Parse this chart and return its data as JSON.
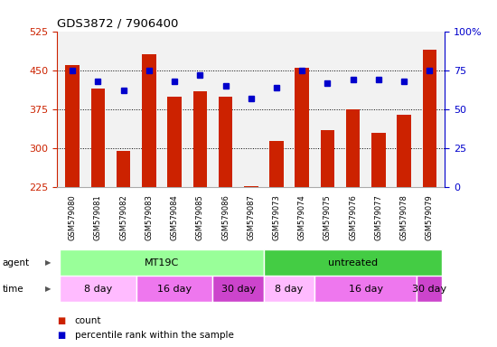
{
  "title": "GDS3872 / 7906400",
  "samples": [
    "GSM579080",
    "GSM579081",
    "GSM579082",
    "GSM579083",
    "GSM579084",
    "GSM579085",
    "GSM579086",
    "GSM579087",
    "GSM579073",
    "GSM579074",
    "GSM579075",
    "GSM579076",
    "GSM579077",
    "GSM579078",
    "GSM579079"
  ],
  "counts": [
    460,
    415,
    295,
    480,
    400,
    410,
    400,
    228,
    315,
    455,
    335,
    375,
    330,
    365,
    490
  ],
  "percentiles": [
    75,
    68,
    62,
    75,
    68,
    72,
    65,
    57,
    64,
    75,
    67,
    69,
    69,
    68,
    75
  ],
  "bar_color": "#cc2200",
  "dot_color": "#0000cc",
  "ylim_left": [
    225,
    525
  ],
  "ylim_right": [
    0,
    100
  ],
  "yticks_left": [
    225,
    300,
    375,
    450,
    525
  ],
  "yticks_right": [
    0,
    25,
    50,
    75,
    100
  ],
  "grid_lines": [
    300,
    375,
    450
  ],
  "agent_groups": [
    {
      "label": "MT19C",
      "start": 0,
      "end": 8,
      "color": "#99ff99"
    },
    {
      "label": "untreated",
      "start": 8,
      "end": 15,
      "color": "#44cc44"
    }
  ],
  "time_groups": [
    {
      "label": "8 day",
      "start": 0,
      "end": 3,
      "color": "#ffbbff"
    },
    {
      "label": "16 day",
      "start": 3,
      "end": 6,
      "color": "#ee77ee"
    },
    {
      "label": "30 day",
      "start": 6,
      "end": 8,
      "color": "#cc44cc"
    },
    {
      "label": "8 day",
      "start": 8,
      "end": 10,
      "color": "#ffbbff"
    },
    {
      "label": "16 day",
      "start": 10,
      "end": 14,
      "color": "#ee77ee"
    },
    {
      "label": "30 day",
      "start": 14,
      "end": 15,
      "color": "#cc44cc"
    }
  ],
  "bar_width": 0.55,
  "axis_color_left": "#cc2200",
  "axis_color_right": "#0000cc"
}
